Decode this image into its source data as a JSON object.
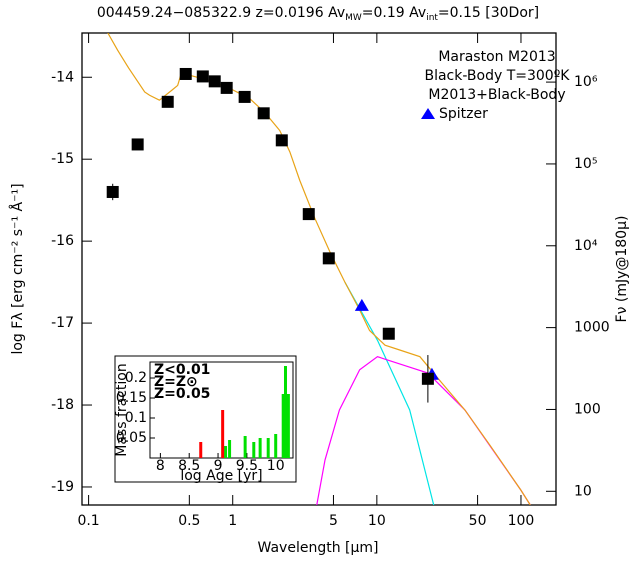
{
  "chart_data": [
    {
      "type": "scatter",
      "title_parts": [
        "004459.24−085322.9 z=0.0196 Av",
        "MW",
        "=0.19 Av",
        "int",
        "=0.15 [30Dor]"
      ],
      "xlabel": "Wavelength [μm]",
      "ylabel": "log Fλ [erg cm⁻² s⁻¹ Å⁻¹]",
      "y2label": "Fν (mJy@180μ)",
      "xlog": true,
      "y2log": true,
      "xlim": [
        0.09,
        175
      ],
      "ylim": [
        -19.22,
        -13.46
      ],
      "y2lim": [
        6.8,
        3980000
      ],
      "xticks": [
        0.1,
        0.5,
        1,
        5,
        10,
        50,
        100
      ],
      "yticks": [
        -14,
        -15,
        -16,
        -17,
        -18,
        -19
      ],
      "y2ticks": [
        {
          "value": 1000000,
          "label": "10⁶"
        },
        {
          "value": 100000,
          "label": "10⁵"
        },
        {
          "value": 10000,
          "label": "10⁴"
        },
        1000,
        100,
        10
      ],
      "legend": "upper right",
      "series": [
        {
          "name": "Maraston M2013",
          "color": "#00e5e5",
          "kind": "line",
          "x": [
            6.0,
            10.1,
            16.9,
            24.8
          ],
          "values": [
            -16.5,
            -17.21,
            -18.06,
            -19.22
          ]
        },
        {
          "name": "Black-Body T=300ºK",
          "color": "#ff00ff",
          "kind": "line",
          "x": [
            3.83,
            4.37,
            5.5,
            7.6,
            10.1,
            14.5,
            22.6,
            40.8,
            100,
            116
          ],
          "values": [
            -19.22,
            -18.67,
            -18.06,
            -17.57,
            -17.41,
            -17.5,
            -17.61,
            -18.06,
            -19.04,
            -19.22
          ]
        },
        {
          "name": "M2013+Black-Body",
          "color": "#e8a317",
          "kind": "line",
          "x": [
            0.136,
            0.159,
            0.19,
            0.245,
            0.265,
            0.31,
            0.377,
            0.415,
            0.44,
            0.54,
            0.69,
            0.94,
            1.31,
            1.67,
            2.12,
            2.49,
            2.92,
            3.71,
            4.72,
            6.0,
            7.6,
            8.9,
            11.4,
            14.5,
            19.9,
            27.3,
            40.8,
            60.9,
            100,
            116
          ],
          "values": [
            -13.46,
            -13.67,
            -13.89,
            -14.18,
            -14.22,
            -14.28,
            -14.16,
            -14.1,
            -13.95,
            -13.99,
            -14.04,
            -14.13,
            -14.26,
            -14.43,
            -14.65,
            -14.91,
            -15.26,
            -15.72,
            -16.13,
            -16.5,
            -16.84,
            -17.09,
            -17.27,
            -17.33,
            -17.41,
            -17.7,
            -18.06,
            -18.49,
            -19.04,
            -19.22
          ]
        },
        {
          "name": "Spitzer",
          "color": "#0000ff",
          "kind": "triangle",
          "x": [
            7.87,
            24.1
          ],
          "values": [
            -16.79,
            -17.63
          ]
        },
        {
          "color": "#000000",
          "kind": "square",
          "x": [
            0.147,
            0.219,
            0.354,
            0.472,
            0.62,
            0.75,
            0.908,
            1.21,
            1.64,
            2.19,
            3.37,
            4.64,
            12.1,
            22.6
          ],
          "values": [
            -15.4,
            -14.82,
            -14.3,
            -13.96,
            -13.99,
            -14.05,
            -14.13,
            -14.24,
            -14.44,
            -14.77,
            -15.67,
            -16.21,
            -17.13,
            -17.68
          ],
          "errors": [
            0.1,
            null,
            null,
            null,
            null,
            null,
            null,
            null,
            null,
            null,
            null,
            null,
            null,
            0.29
          ]
        }
      ]
    },
    {
      "type": "bar",
      "xlabel": "log Age [yr]",
      "ylabel": "Mass fraction",
      "xlim": [
        7.82,
        10.3
      ],
      "ylim": [
        0,
        0.24
      ],
      "xticks": [
        8,
        8.5,
        9,
        9.5,
        10
      ],
      "yticks": [
        0.05,
        0.1,
        0.15,
        0.2
      ],
      "legend": "upper left",
      "series": [
        {
          "name": "Z<0.01",
          "color": "#0000ff",
          "x": [],
          "values": []
        },
        {
          "name": "Z=Z⊙",
          "color": "#00e000",
          "x": [
            9.13,
            9.2,
            9.47,
            9.62,
            9.73,
            9.87,
            10.0,
            10.13,
            10.17,
            10.22
          ],
          "values": [
            0.03,
            0.045,
            0.055,
            0.04,
            0.05,
            0.05,
            0.06,
            0.16,
            0.23,
            0.16
          ]
        },
        {
          "name": "Z=0.05",
          "color": "#ff0000",
          "x": [
            8.7,
            9.08
          ],
          "values": [
            0.04,
            0.12
          ]
        }
      ]
    }
  ]
}
